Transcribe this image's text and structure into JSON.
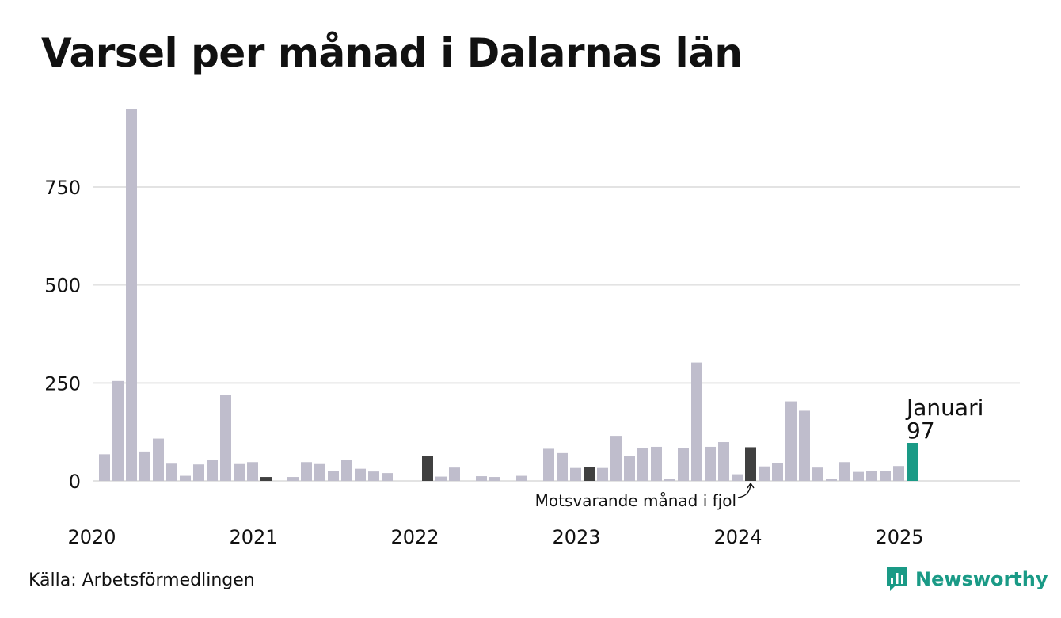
{
  "title": "Varsel per månad i Dalarnas län",
  "source": "Källa: Arbetsförmedlingen",
  "brand": {
    "name": "Newsworthy",
    "icon": "newsworthy-logo-icon"
  },
  "colors": {
    "bar": "#bfbdcc",
    "highlight_last_year": "#404040",
    "current": "#1a9a86",
    "grid": "#e3e3e3",
    "brand": "#1a9a86"
  },
  "chart_data": {
    "type": "bar",
    "title": "Varsel per månad i Dalarnas län",
    "xlabel": "",
    "ylabel": "",
    "ylim": [
      0,
      950
    ],
    "y_ticks": [
      0,
      250,
      500,
      750
    ],
    "y_tick_labels": [
      "0",
      "250",
      "500",
      "750"
    ],
    "x_tick_labels": [
      "2020",
      "2021",
      "2022",
      "2023",
      "2024",
      "2025"
    ],
    "grid": true,
    "categories": [
      "2020-01",
      "2020-02",
      "2020-03",
      "2020-04",
      "2020-05",
      "2020-06",
      "2020-07",
      "2020-08",
      "2020-09",
      "2020-10",
      "2020-11",
      "2020-12",
      "2021-01",
      "2021-02",
      "2021-03",
      "2021-04",
      "2021-05",
      "2021-06",
      "2021-07",
      "2021-08",
      "2021-09",
      "2021-10",
      "2021-11",
      "2021-12",
      "2022-01",
      "2022-02",
      "2022-03",
      "2022-04",
      "2022-05",
      "2022-06",
      "2022-07",
      "2022-08",
      "2022-09",
      "2022-10",
      "2022-11",
      "2022-12",
      "2023-01",
      "2023-02",
      "2023-03",
      "2023-04",
      "2023-05",
      "2023-06",
      "2023-07",
      "2023-08",
      "2023-09",
      "2023-10",
      "2023-11",
      "2023-12",
      "2024-01",
      "2024-02",
      "2024-03",
      "2024-04",
      "2024-05",
      "2024-06",
      "2024-07",
      "2024-08",
      "2024-09",
      "2024-10",
      "2024-11",
      "2024-12",
      "2025-01"
    ],
    "values": [
      68,
      255,
      950,
      75,
      108,
      44,
      13,
      42,
      54,
      220,
      43,
      48,
      10,
      0,
      10,
      48,
      43,
      25,
      54,
      31,
      24,
      20,
      0,
      0,
      63,
      11,
      34,
      0,
      12,
      10,
      0,
      13,
      0,
      82,
      71,
      33,
      36,
      33,
      115,
      64,
      84,
      87,
      6,
      83,
      302,
      87,
      99,
      17,
      86,
      37,
      45,
      203,
      179,
      34,
      6,
      48,
      23,
      25,
      25,
      38,
      97
    ],
    "highlights": [
      {
        "category": "2021-01",
        "role": "same-month-previous-year"
      },
      {
        "category": "2022-01",
        "role": "same-month-previous-year"
      },
      {
        "category": "2023-01",
        "role": "same-month-previous-year"
      },
      {
        "category": "2024-01",
        "role": "same-month-previous-year"
      },
      {
        "category": "2025-01",
        "role": "current"
      }
    ],
    "annotations": {
      "current_month": "Januari",
      "current_value": "97",
      "previous_year_note": "Motsvarande månad i fjol"
    }
  }
}
